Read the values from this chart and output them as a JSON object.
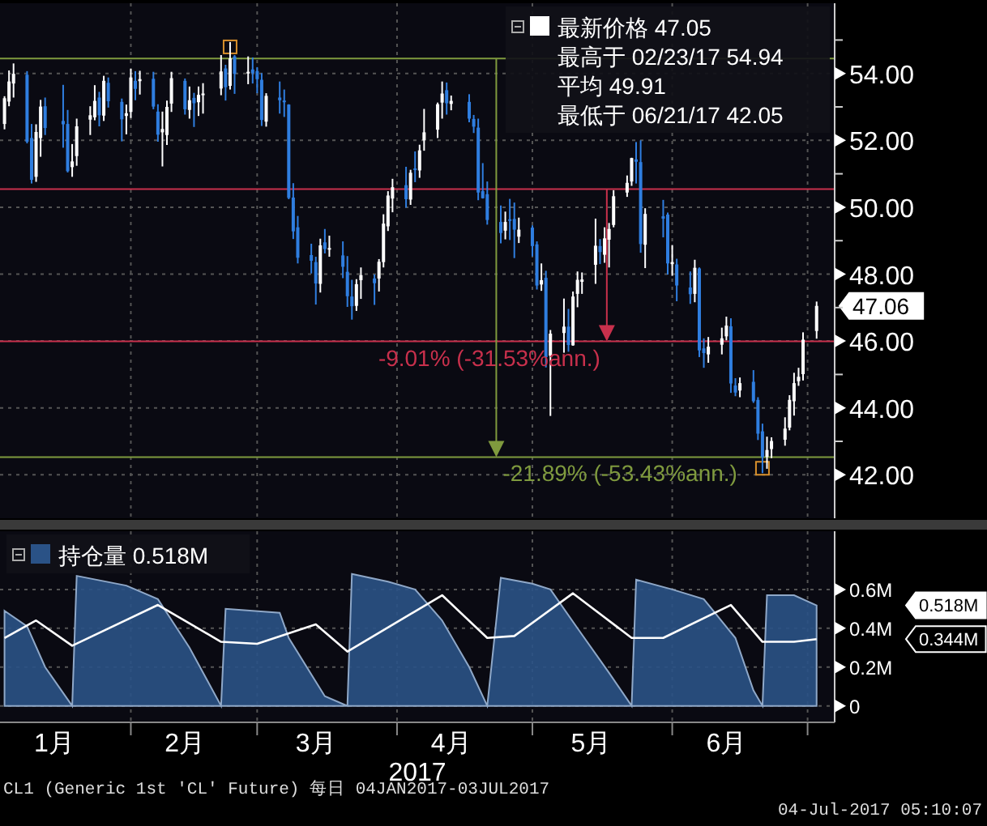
{
  "chart_data": [
    {
      "type": "candlestick",
      "x": [
        "2017-01-04",
        "2017-01-05",
        "2017-01-06",
        "2017-01-09",
        "2017-01-10",
        "2017-01-11",
        "2017-01-12",
        "2017-01-13",
        "2017-01-17",
        "2017-01-18",
        "2017-01-19",
        "2017-01-20",
        "2017-01-23",
        "2017-01-24",
        "2017-01-25",
        "2017-01-26",
        "2017-01-27",
        "2017-01-30",
        "2017-01-31",
        "2017-02-01",
        "2017-02-02",
        "2017-02-03",
        "2017-02-06",
        "2017-02-07",
        "2017-02-08",
        "2017-02-09",
        "2017-02-10",
        "2017-02-13",
        "2017-02-14",
        "2017-02-15",
        "2017-02-16",
        "2017-02-17",
        "2017-02-21",
        "2017-02-22",
        "2017-02-23",
        "2017-02-24",
        "2017-02-27",
        "2017-02-28",
        "2017-03-01",
        "2017-03-02",
        "2017-03-03",
        "2017-03-06",
        "2017-03-07",
        "2017-03-08",
        "2017-03-09",
        "2017-03-10",
        "2017-03-13",
        "2017-03-14",
        "2017-03-15",
        "2017-03-16",
        "2017-03-17",
        "2017-03-20",
        "2017-03-21",
        "2017-03-22",
        "2017-03-23",
        "2017-03-24",
        "2017-03-27",
        "2017-03-28",
        "2017-03-29",
        "2017-03-30",
        "2017-03-31",
        "2017-04-03",
        "2017-04-04",
        "2017-04-05",
        "2017-04-06",
        "2017-04-07",
        "2017-04-10",
        "2017-04-11",
        "2017-04-12",
        "2017-04-13",
        "2017-04-17",
        "2017-04-18",
        "2017-04-19",
        "2017-04-20",
        "2017-04-21",
        "2017-04-24",
        "2017-04-25",
        "2017-04-26",
        "2017-04-27",
        "2017-04-28",
        "2017-05-01",
        "2017-05-02",
        "2017-05-03",
        "2017-05-04",
        "2017-05-05",
        "2017-05-08",
        "2017-05-09",
        "2017-05-10",
        "2017-05-11",
        "2017-05-12",
        "2017-05-15",
        "2017-05-16",
        "2017-05-17",
        "2017-05-18",
        "2017-05-19",
        "2017-05-22",
        "2017-05-23",
        "2017-05-24",
        "2017-05-25",
        "2017-05-26",
        "2017-05-30",
        "2017-05-31",
        "2017-06-01",
        "2017-06-02",
        "2017-06-05",
        "2017-06-06",
        "2017-06-07",
        "2017-06-08",
        "2017-06-09",
        "2017-06-12",
        "2017-06-13",
        "2017-06-14",
        "2017-06-15",
        "2017-06-16",
        "2017-06-19",
        "2017-06-20",
        "2017-06-21",
        "2017-06-22",
        "2017-06-23",
        "2017-06-26",
        "2017-06-27",
        "2017-06-28",
        "2017-06-29",
        "2017-06-30",
        "2017-07-03"
      ],
      "xlim": [
        "2017-01-03",
        "2017-07-07"
      ],
      "series": [
        {
          "name": "最新价格 47.05",
          "colors": [
            "#ffffff",
            "#ffffff",
            "#ffffff",
            "#2f7ee0",
            "#2f7ee0",
            "#ffffff",
            "#ffffff",
            "#2f7ee0",
            "#2f7ee0",
            "#2f7ee0",
            "#ffffff",
            "#ffffff",
            "#ffffff",
            "#ffffff",
            "#2f7ee0",
            "#ffffff",
            "#2f7ee0",
            "#2f7ee0",
            "#ffffff",
            "#ffffff",
            "#2f7ee0",
            "#ffffff",
            "#2f7ee0",
            "#2f7ee0",
            "#ffffff",
            "#ffffff",
            "#ffffff",
            "#2f7ee0",
            "#ffffff",
            "#2f7ee0",
            "#ffffff",
            "#ffffff",
            "#ffffff",
            "#2f7ee0",
            "#ffffff",
            "#2f7ee0",
            "#ffffff",
            "#2f7ee0",
            "#2f7ee0",
            "#2f7ee0",
            "#ffffff",
            "#2f7ee0",
            "#2f7ee0",
            "#2f7ee0",
            "#2f7ee0",
            "#2f7ee0",
            "#2f7ee0",
            "#2f7ee0",
            "#ffffff",
            "#2f7ee0",
            "#ffffff",
            "#2f7ee0",
            "#2f7ee0",
            "#2f7ee0",
            "#ffffff",
            "#ffffff",
            "#2f7ee0",
            "#ffffff",
            "#ffffff",
            "#ffffff",
            "#ffffff",
            "#2f7ee0",
            "#ffffff",
            "#2f7ee0",
            "#ffffff",
            "#ffffff",
            "#ffffff",
            "#ffffff",
            "#2f7ee0",
            "#ffffff",
            "#2f7ee0",
            "#2f7ee0",
            "#2f7ee0",
            "#2f7ee0",
            "#2f7ee0",
            "#2f7ee0",
            "#ffffff",
            "#2f7ee0",
            "#2f7ee0",
            "#ffffff",
            "#2f7ee0",
            "#2f7ee0",
            "#ffffff",
            "#2f7ee0",
            "#ffffff",
            "#ffffff",
            "#2f7ee0",
            "#ffffff",
            "#ffffff",
            "#ffffff",
            "#ffffff",
            "#2f7ee0",
            "#ffffff",
            "#ffffff",
            "#ffffff",
            "#ffffff",
            "#ffffff",
            "#2f7ee0",
            "#2f7ee0",
            "#ffffff",
            "#2f7ee0",
            "#2f7ee0",
            "#ffffff",
            "#2f7ee0",
            "#2f7ee0",
            "#ffffff",
            "#2f7ee0",
            "#2f7ee0",
            "#ffffff",
            "#ffffff",
            "#ffffff",
            "#2f7ee0",
            "#2f7ee0",
            "#ffffff",
            "#2f7ee0",
            "#2f7ee0",
            "#2f7ee0",
            "#ffffff",
            "#ffffff",
            "#ffffff",
            "#ffffff",
            "#ffffff",
            "#ffffff",
            "#ffffff",
            "#ffffff"
          ],
          "ohlc": [
            [
              52.49,
              53.32,
              52.33,
              53.26
            ],
            [
              53.16,
              54.09,
              53.02,
              53.76
            ],
            [
              53.7,
              54.3,
              53.28,
              53.99
            ],
            [
              53.96,
              54.07,
              51.91,
              51.96
            ],
            [
              52.07,
              52.49,
              50.71,
              50.82
            ],
            [
              50.91,
              52.48,
              50.76,
              52.25
            ],
            [
              52.07,
              53.21,
              51.51,
              53.01
            ],
            [
              53.02,
              53.28,
              52.16,
              52.37
            ],
            [
              52.58,
              53.66,
              51.78,
              52.48
            ],
            [
              52.49,
              52.91,
              51.04,
              51.08
            ],
            [
              51.2,
              51.89,
              50.91,
              51.37
            ],
            [
              51.53,
              52.65,
              51.24,
              52.42
            ],
            [
              52.62,
              53.02,
              52.16,
              52.75
            ],
            [
              52.69,
              53.65,
              52.6,
              53.18
            ],
            [
              53.28,
              53.45,
              52.42,
              52.75
            ],
            [
              52.74,
              53.93,
              52.58,
              53.78
            ],
            [
              53.72,
              53.88,
              52.98,
              53.17
            ],
            [
              53.15,
              53.25,
              51.97,
              52.63
            ],
            [
              52.73,
              53.07,
              52.18,
              52.81
            ],
            [
              52.85,
              54.14,
              52.67,
              53.88
            ],
            [
              53.78,
              54.07,
              53.2,
              53.54
            ],
            [
              53.77,
              54.08,
              53.37,
              53.83
            ],
            [
              53.84,
              54.05,
              52.93,
              53.01
            ],
            [
              52.86,
              53.08,
              51.96,
              52.17
            ],
            [
              52.24,
              52.86,
              51.22,
              52.34
            ],
            [
              52.16,
              53.19,
              51.86,
              53.0
            ],
            [
              53.1,
              54.05,
              52.85,
              53.86
            ],
            [
              53.78,
              53.85,
              52.77,
              52.93
            ],
            [
              52.91,
              53.61,
              52.65,
              53.2
            ],
            [
              53.27,
              53.42,
              52.4,
              53.11
            ],
            [
              53.14,
              53.61,
              52.73,
              53.36
            ],
            [
              53.35,
              53.71,
              52.8,
              53.4
            ],
            [
              53.55,
              54.55,
              53.35,
              54.06
            ],
            [
              54.15,
              54.26,
              53.19,
              53.59
            ],
            [
              53.63,
              54.94,
              53.52,
              54.45
            ],
            [
              54.51,
              54.55,
              53.39,
              53.99
            ],
            [
              54.0,
              54.51,
              53.68,
              54.05
            ],
            [
              54.12,
              54.48,
              53.7,
              54.01
            ],
            [
              54.07,
              54.19,
              53.41,
              53.83
            ],
            [
              53.81,
              54.01,
              52.43,
              52.61
            ],
            [
              52.56,
              53.41,
              52.41,
              53.33
            ],
            [
              53.28,
              53.76,
              52.8,
              53.2
            ],
            [
              53.19,
              53.52,
              52.7,
              53.14
            ],
            [
              53.07,
              53.08,
              50.24,
              50.28
            ],
            [
              50.29,
              50.72,
              49.05,
              49.28
            ],
            [
              49.4,
              49.74,
              48.32,
              48.49
            ],
            [
              48.57,
              48.91,
              48.02,
              48.4
            ],
            [
              48.36,
              48.52,
              47.09,
              47.72
            ],
            [
              47.71,
              49.06,
              47.45,
              48.86
            ],
            [
              48.95,
              49.35,
              48.62,
              48.75
            ],
            [
              48.74,
              49.15,
              48.52,
              48.78
            ],
            [
              48.56,
              48.98,
              47.88,
              48.22
            ],
            [
              48.07,
              48.54,
              47.02,
              47.34
            ],
            [
              47.33,
              47.83,
              46.64,
              47.04
            ],
            [
              47.05,
              47.85,
              46.9,
              47.7
            ],
            [
              47.82,
              48.2,
              47.26,
              47.97
            ],
            [
              47.87,
              47.99,
              47.08,
              47.73
            ],
            [
              47.87,
              48.45,
              47.48,
              48.37
            ],
            [
              48.36,
              49.79,
              48.2,
              49.51
            ],
            [
              49.43,
              50.48,
              49.29,
              50.35
            ],
            [
              50.26,
              50.85,
              49.85,
              50.6
            ],
            [
              50.66,
              51.21,
              49.99,
              50.24
            ],
            [
              50.23,
              51.12,
              50.07,
              51.03
            ],
            [
              51.16,
              51.67,
              50.75,
              51.15
            ],
            [
              51.1,
              51.87,
              50.88,
              51.7
            ],
            [
              52.0,
              52.94,
              51.69,
              52.24
            ],
            [
              52.32,
              53.13,
              52.07,
              53.08
            ],
            [
              53.13,
              53.76,
              52.65,
              53.4
            ],
            [
              53.5,
              53.73,
              52.77,
              53.11
            ],
            [
              53.09,
              53.34,
              52.9,
              53.18
            ],
            [
              53.15,
              53.38,
              52.54,
              52.65
            ],
            [
              52.64,
              52.76,
              52.22,
              52.41
            ],
            [
              52.38,
              52.65,
              50.21,
              50.44
            ],
            [
              50.48,
              51.32,
              50.26,
              50.27
            ],
            [
              50.39,
              50.77,
              49.48,
              49.62
            ],
            [
              49.56,
              50.05,
              48.92,
              49.23
            ],
            [
              49.3,
              49.87,
              49.04,
              49.56
            ],
            [
              49.64,
              50.25,
              49.02,
              49.62
            ],
            [
              49.65,
              50.14,
              48.48,
              49.33
            ],
            [
              49.12,
              49.69,
              48.93,
              49.33
            ],
            [
              49.39,
              49.46,
              48.53,
              48.84
            ],
            [
              48.89,
              48.98,
              47.54,
              47.66
            ],
            [
              47.69,
              48.32,
              47.5,
              47.82
            ],
            [
              47.89,
              48.1,
              45.21,
              45.52
            ],
            [
              45.56,
              46.33,
              43.76,
              46.22
            ],
            [
              46.24,
              47.27,
              45.65,
              46.43
            ],
            [
              46.43,
              46.96,
              45.68,
              45.88
            ],
            [
              45.87,
              47.48,
              45.86,
              47.33
            ],
            [
              47.41,
              48.08,
              47.01,
              47.83
            ],
            [
              47.77,
              48.05,
              47.41,
              47.84
            ],
            [
              48.28,
              49.66,
              47.71,
              48.85
            ],
            [
              48.84,
              49.05,
              48.3,
              48.66
            ],
            [
              48.58,
              49.4,
              48.34,
              49.07
            ],
            [
              49.03,
              49.53,
              48.2,
              49.35
            ],
            [
              49.47,
              50.51,
              49.4,
              50.33
            ],
            [
              50.44,
              50.95,
              50.31,
              50.73
            ],
            [
              50.77,
              51.48,
              50.64,
              51.47
            ],
            [
              51.43,
              51.95,
              50.71,
              51.36
            ],
            [
              51.35,
              52.0,
              48.64,
              48.9
            ],
            [
              48.88,
              49.97,
              48.18,
              49.8
            ],
            [
              49.73,
              50.22,
              49.1,
              49.66
            ],
            [
              49.78,
              49.84,
              47.99,
              48.32
            ],
            [
              48.3,
              48.87,
              47.95,
              48.36
            ],
            [
              48.29,
              48.46,
              47.19,
              47.66
            ],
            [
              47.6,
              48.08,
              47.11,
              47.4
            ],
            [
              47.41,
              48.43,
              47.16,
              48.19
            ],
            [
              48.17,
              48.2,
              45.52,
              45.72
            ],
            [
              45.78,
              46.08,
              45.2,
              45.64
            ],
            [
              45.6,
              46.12,
              45.35,
              45.83
            ],
            [
              45.89,
              46.4,
              45.6,
              46.08
            ],
            [
              46.14,
              46.73,
              46.02,
              46.46
            ],
            [
              46.44,
              46.68,
              44.45,
              44.73
            ],
            [
              44.67,
              44.89,
              44.35,
              44.46
            ],
            [
              44.52,
              44.91,
              44.32,
              44.74
            ],
            [
              44.78,
              45.13,
              44.15,
              44.2
            ],
            [
              44.24,
              44.32,
              43.04,
              43.23
            ],
            [
              43.3,
              43.53,
              42.05,
              42.53
            ],
            [
              42.54,
              43.14,
              42.18,
              42.74
            ],
            [
              42.77,
              43.12,
              42.5,
              43.01
            ],
            [
              43.05,
              43.72,
              42.87,
              43.38
            ],
            [
              43.41,
              44.38,
              43.33,
              44.24
            ],
            [
              44.2,
              45.05,
              43.77,
              44.74
            ],
            [
              44.8,
              45.2,
              44.66,
              44.93
            ],
            [
              45.01,
              46.26,
              44.82,
              46.04
            ],
            [
              46.3,
              47.18,
              46.07,
              47.05
            ]
          ]
        }
      ],
      "ylim": [
        40.7,
        56.1
      ],
      "yticks": [
        {
          "value": 42,
          "label": "42.00"
        },
        {
          "value": 43,
          "label": null
        },
        {
          "value": 44,
          "label": "44.00"
        },
        {
          "value": 45,
          "label": null
        },
        {
          "value": 46,
          "label": "46.00"
        },
        {
          "value": 47,
          "label": null
        },
        {
          "value": 48,
          "label": "48.00"
        },
        {
          "value": 49,
          "label": null
        },
        {
          "value": 50,
          "label": "50.00"
        },
        {
          "value": 51,
          "label": null
        },
        {
          "value": 52,
          "label": "52.00"
        },
        {
          "value": 53,
          "label": null
        },
        {
          "value": 54,
          "label": "54.00"
        },
        {
          "value": 55,
          "label": null
        }
      ],
      "xticks": [
        {
          "value": "2017-02-01",
          "label": null
        },
        {
          "value": "2017-03-01",
          "label": null
        },
        {
          "value": "2017-04-01",
          "label": null
        },
        {
          "value": "2017-05-01",
          "label": null
        },
        {
          "value": "2017-06-01",
          "label": null
        },
        {
          "value": "2017-07-01",
          "label": null
        }
      ],
      "tick_labels": "y",
      "grid": true,
      "legend": "top right",
      "ref_lines": [
        {
          "axis": "y",
          "value": 54.45,
          "color": "#7f9a3e"
        },
        {
          "axis": "y",
          "value": 42.53,
          "color": "#7f9a3e"
        },
        {
          "axis": "y",
          "value": 50.54,
          "color": "#c8304c"
        },
        {
          "axis": "y",
          "value": 45.99,
          "color": "#c8304c"
        }
      ],
      "annotations": [
        "最高于 02/23/17 54.94",
        "平均 49.91",
        "最低于 06/21/17 42.05",
        {
          "text": "-21.89% (-53.43%ann.)",
          "x": "2017-04-23",
          "y": 42.53
        },
        {
          "text": "-9.01% (-31.53%ann.)",
          "x": "2017-05-17T12:00",
          "y": 45.99
        },
        "47.06"
      ]
    },
    {
      "type": "area",
      "xlabel": "2017",
      "xlim": [
        "2017-01-03",
        "2017-07-07"
      ],
      "series": [
        {
          "name": "持仓量 0.518M",
          "type": "area",
          "color": "#2a5286",
          "x": [
            "2017-01-04",
            "2017-01-09",
            "2017-01-13",
            "2017-01-19",
            "2017-01-20",
            "2017-01-31",
            "2017-02-07",
            "2017-02-14",
            "2017-02-21",
            "2017-02-22",
            "2017-03-06",
            "2017-03-08",
            "2017-03-16",
            "2017-03-21",
            "2017-03-22",
            "2017-03-30",
            "2017-04-05",
            "2017-04-11",
            "2017-04-17",
            "2017-04-21",
            "2017-04-24",
            "2017-05-01",
            "2017-05-05",
            "2017-05-11",
            "2017-05-18",
            "2017-05-23",
            "2017-05-24",
            "2017-06-01",
            "2017-06-08",
            "2017-06-15",
            "2017-06-19",
            "2017-06-21",
            "2017-06-22",
            "2017-06-28",
            "2017-07-03"
          ],
          "values": [
            0.49,
            0.41,
            0.2,
            0,
            0.67,
            0.62,
            0.55,
            0.3,
            0,
            0.5,
            0.48,
            0.35,
            0.05,
            0,
            0.68,
            0.64,
            0.6,
            0.44,
            0.2,
            0,
            0.66,
            0.63,
            0.6,
            0.4,
            0.17,
            0,
            0.65,
            0.6,
            0.55,
            0.35,
            0.08,
            0,
            0.57,
            0.57,
            0.518
          ]
        },
        {
          "type": "line",
          "color": "#ffffff",
          "x": [
            "2017-01-04",
            "2017-01-11",
            "2017-01-19",
            "2017-02-07",
            "2017-02-21",
            "2017-03-01",
            "2017-03-14",
            "2017-03-21",
            "2017-04-11",
            "2017-04-21",
            "2017-04-27",
            "2017-05-10",
            "2017-05-23",
            "2017-05-30",
            "2017-06-14",
            "2017-06-21",
            "2017-06-28",
            "2017-07-03"
          ],
          "values": [
            0.35,
            0.44,
            0.31,
            0.52,
            0.33,
            0.32,
            0.42,
            0.28,
            0.57,
            0.35,
            0.36,
            0.58,
            0.35,
            0.35,
            0.52,
            0.33,
            0.33,
            0.344
          ]
        }
      ],
      "ylim": [
        -0.085,
        0.9
      ],
      "yticks": [
        0,
        {
          "value": 0.2,
          "label": "0.2M"
        },
        {
          "value": 0.4,
          "label": "0.4M"
        },
        {
          "value": 0.6,
          "label": "0.6M"
        }
      ],
      "xticks": [
        {
          "value": "2017-01-15",
          "label": "1月"
        },
        {
          "value": "2017-02-01",
          "label": null
        },
        {
          "value": "2017-02-13",
          "label": "2月"
        },
        {
          "value": "2017-03-01",
          "label": null
        },
        {
          "value": "2017-03-14",
          "label": "3月"
        },
        {
          "value": "2017-04-01",
          "label": null
        },
        {
          "value": "2017-04-13",
          "label": "4月"
        },
        {
          "value": "2017-05-01",
          "label": null
        },
        {
          "value": "2017-05-14",
          "label": "5月"
        },
        {
          "value": "2017-06-01",
          "label": null
        },
        {
          "value": "2017-06-13",
          "label": "6月"
        },
        {
          "value": "2017-07-01",
          "label": null
        }
      ],
      "grid": true,
      "legend": "top left",
      "annotations": [
        "0.518M",
        "0.344M",
        "CL1 (Generic 1st 'CL' Future) 每日 04JAN2017-03JUL2017",
        "04-Jul-2017 05:10:07"
      ]
    }
  ]
}
